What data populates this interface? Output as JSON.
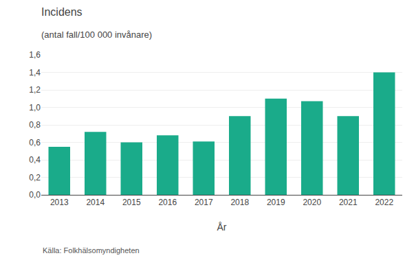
{
  "chart_data": {
    "type": "bar",
    "title": "Incidens",
    "subtitle": "(antal fall/100 000 invånare)",
    "xlabel": "År",
    "annotations": [
      "Källa: Folkhälsomyndigheten"
    ],
    "categories": [
      "2013",
      "2014",
      "2015",
      "2016",
      "2017",
      "2018",
      "2019",
      "2020",
      "2021",
      "2022"
    ],
    "values": [
      0.55,
      0.72,
      0.6,
      0.68,
      0.61,
      0.9,
      1.1,
      1.07,
      0.9,
      1.4
    ],
    "color": "#1aab8a",
    "ylim": [
      0,
      1.6
    ],
    "yticks": [
      {
        "value": 0.0,
        "label": "0,0"
      },
      {
        "value": 0.2,
        "label": "0,2"
      },
      {
        "value": 0.4,
        "label": "0,4"
      },
      {
        "value": 0.6,
        "label": "0,6"
      },
      {
        "value": 0.8,
        "label": "0,8"
      },
      {
        "value": 1.0,
        "label": "1,0"
      },
      {
        "value": 1.2,
        "label": "1,2"
      },
      {
        "value": 1.4,
        "label": "1,4"
      },
      {
        "value": 1.6,
        "label": "1,6"
      }
    ],
    "grid": true
  }
}
